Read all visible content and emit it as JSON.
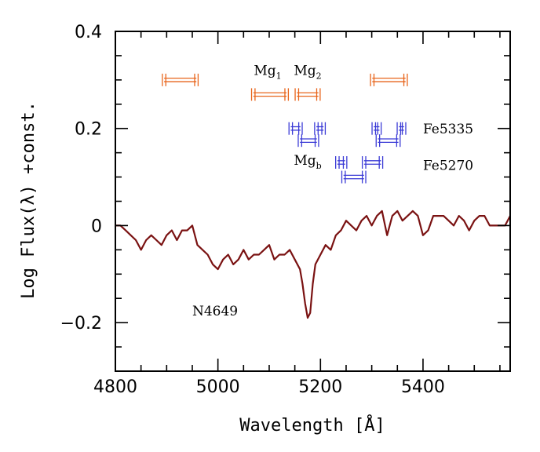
{
  "chart_data": {
    "type": "line",
    "title": "",
    "xlabel": "Wavelength [Å]",
    "ylabel": "Log Flux(λ) +const.",
    "xlim": [
      4800,
      5570
    ],
    "ylim": [
      -0.3,
      0.4
    ],
    "xticks": [
      {
        "value": 4800,
        "label": "4800"
      },
      {
        "value": 5000,
        "label": "5000"
      },
      {
        "value": 5200,
        "label": "5200"
      },
      {
        "value": 5400,
        "label": "5400"
      }
    ],
    "yticks": [
      {
        "value": 0.4,
        "label": "0.4"
      },
      {
        "value": 0.2,
        "label": "0.2"
      },
      {
        "value": 0,
        "label": "0"
      },
      {
        "value": -0.2,
        "label": "−0.2"
      }
    ],
    "xminor_step": 50,
    "yminor_step": 0.05,
    "grid": false,
    "series": [
      {
        "color": "#7a1212",
        "x": [
          4800,
          4810,
          4820,
          4830,
          4840,
          4850,
          4860,
          4870,
          4880,
          4890,
          4900,
          4910,
          4920,
          4930,
          4940,
          4950,
          4960,
          4970,
          4980,
          4990,
          5000,
          5010,
          5020,
          5030,
          5040,
          5050,
          5060,
          5070,
          5080,
          5090,
          5100,
          5110,
          5120,
          5130,
          5140,
          5150,
          5160,
          5165,
          5170,
          5175,
          5180,
          5185,
          5190,
          5200,
          5210,
          5220,
          5230,
          5240,
          5250,
          5260,
          5270,
          5280,
          5290,
          5300,
          5310,
          5320,
          5330,
          5340,
          5350,
          5360,
          5370,
          5380,
          5390,
          5400,
          5410,
          5420,
          5430,
          5440,
          5450,
          5460,
          5470,
          5480,
          5490,
          5500,
          5510,
          5520,
          5530,
          5540,
          5550,
          5560,
          5570
        ],
        "y": [
          0.0,
          0.0,
          -0.01,
          -0.02,
          -0.03,
          -0.05,
          -0.03,
          -0.02,
          -0.03,
          -0.04,
          -0.02,
          -0.01,
          -0.03,
          -0.01,
          -0.01,
          0.0,
          -0.04,
          -0.05,
          -0.06,
          -0.08,
          -0.09,
          -0.07,
          -0.06,
          -0.08,
          -0.07,
          -0.05,
          -0.07,
          -0.06,
          -0.06,
          -0.05,
          -0.04,
          -0.07,
          -0.06,
          -0.06,
          -0.05,
          -0.07,
          -0.09,
          -0.12,
          -0.16,
          -0.19,
          -0.18,
          -0.12,
          -0.08,
          -0.06,
          -0.04,
          -0.05,
          -0.02,
          -0.01,
          0.01,
          0.0,
          -0.01,
          0.01,
          0.02,
          0.0,
          0.02,
          0.03,
          -0.02,
          0.02,
          0.03,
          0.01,
          0.02,
          0.03,
          0.02,
          -0.02,
          -0.01,
          0.02,
          0.02,
          0.02,
          0.01,
          0.0,
          0.02,
          0.01,
          -0.01,
          0.01,
          0.02,
          0.02,
          0.0,
          0.0,
          0.0,
          0.0,
          0.02
        ]
      }
    ],
    "bandpasses": [
      {
        "group": "Mg",
        "color": "#e8641a",
        "x1": 4895,
        "x2": 4958,
        "y": 0.3
      },
      {
        "group": "Mg",
        "color": "#e8641a",
        "x1": 5069,
        "x2": 5134,
        "y": 0.27
      },
      {
        "group": "Mg",
        "color": "#e8641a",
        "x1": 5154,
        "x2": 5196,
        "y": 0.27
      },
      {
        "group": "Mg",
        "color": "#e8641a",
        "x1": 5301,
        "x2": 5366,
        "y": 0.3
      },
      {
        "group": "Fe",
        "color": "#3b3bd6",
        "x1": 5142,
        "x2": 5161,
        "y": 0.2
      },
      {
        "group": "Fe",
        "color": "#3b3bd6",
        "x1": 5192,
        "x2": 5206,
        "y": 0.2
      },
      {
        "group": "Fe",
        "color": "#3b3bd6",
        "x1": 5160,
        "x2": 5193,
        "y": 0.175
      },
      {
        "group": "Fe",
        "color": "#3b3bd6",
        "x1": 5304,
        "x2": 5315,
        "y": 0.2
      },
      {
        "group": "Fe",
        "color": "#3b3bd6",
        "x1": 5353,
        "x2": 5363,
        "y": 0.2
      },
      {
        "group": "Fe",
        "color": "#3b3bd6",
        "x1": 5312,
        "x2": 5352,
        "y": 0.175
      },
      {
        "group": "Fe",
        "color": "#3b3bd6",
        "x1": 5233,
        "x2": 5248,
        "y": 0.13
      },
      {
        "group": "Fe",
        "color": "#3b3bd6",
        "x1": 5285,
        "x2": 5318,
        "y": 0.13
      },
      {
        "group": "Fe",
        "color": "#3b3bd6",
        "x1": 5245,
        "x2": 5285,
        "y": 0.1
      }
    ],
    "annotations": [
      {
        "id": "mg1",
        "main": "Mg",
        "sub": "1",
        "x": 5070,
        "y": 0.31
      },
      {
        "id": "mg2",
        "main": "Mg",
        "sub": "2",
        "x": 5148,
        "y": 0.31
      },
      {
        "id": "mgb",
        "main": "Mg",
        "sub": "b",
        "x": 5148,
        "y": 0.125
      },
      {
        "id": "fe5335",
        "main": "Fe5335",
        "sub": "",
        "x": 5400,
        "y": 0.19
      },
      {
        "id": "fe5270",
        "main": "Fe5270",
        "sub": "",
        "x": 5400,
        "y": 0.115
      },
      {
        "id": "n4649",
        "main": "N4649",
        "sub": "",
        "x": 4950,
        "y": -0.185
      }
    ]
  }
}
